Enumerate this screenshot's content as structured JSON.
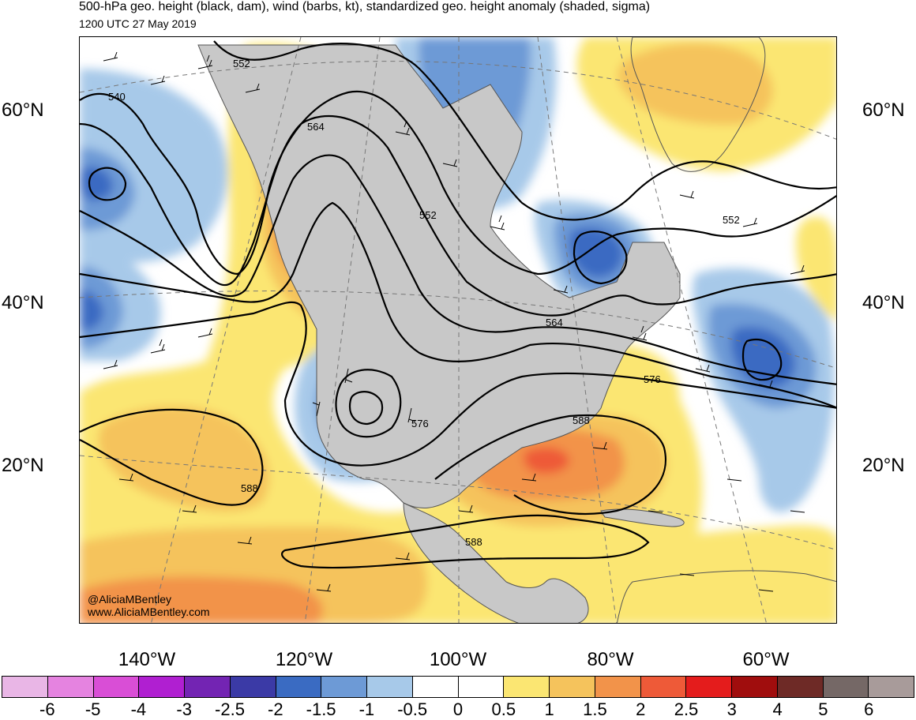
{
  "title": "500-hPa geo. height (black, dam), wind (barbs, kt), standardized geo. height anomaly (shaded, sigma)",
  "subtitle": "1200 UTC 27 May 2019",
  "credit": [
    "@AliciaMBentley",
    "www.AliciaMBentley.com"
  ],
  "lat_labels": [
    "60°N",
    "40°N",
    "20°N"
  ],
  "lon_labels": [
    "140°W",
    "120°W",
    "100°W",
    "80°W",
    "60°W"
  ],
  "contour_labels": [
    "552",
    "540",
    "564",
    "552",
    "552",
    "564",
    "576",
    "576",
    "588",
    "588",
    "588"
  ],
  "colorbar": {
    "labels": [
      "-6",
      "-5",
      "-4",
      "-3",
      "-2.5",
      "-2",
      "-1.5",
      "-1",
      "-0.5",
      "0",
      "0.5",
      "1",
      "1.5",
      "2",
      "2.5",
      "3",
      "4",
      "5",
      "6"
    ],
    "colors": [
      "#e9b6e6",
      "#e583e0",
      "#d94ed6",
      "#b01fd1",
      "#7324b3",
      "#3b3aa6",
      "#3a6bc2",
      "#6d9ad6",
      "#a7c9e9",
      "#ffffff",
      "#ffffff",
      "#fbe672",
      "#f5c35c",
      "#f2934a",
      "#ee5a38",
      "#e41c1c",
      "#a00d0d",
      "#6e2a26",
      "#756866",
      "#a89b9a"
    ]
  },
  "colors": {
    "land": "#c8c8c8",
    "coast": "#555555",
    "contour": "#000000",
    "barb": "#000000"
  }
}
